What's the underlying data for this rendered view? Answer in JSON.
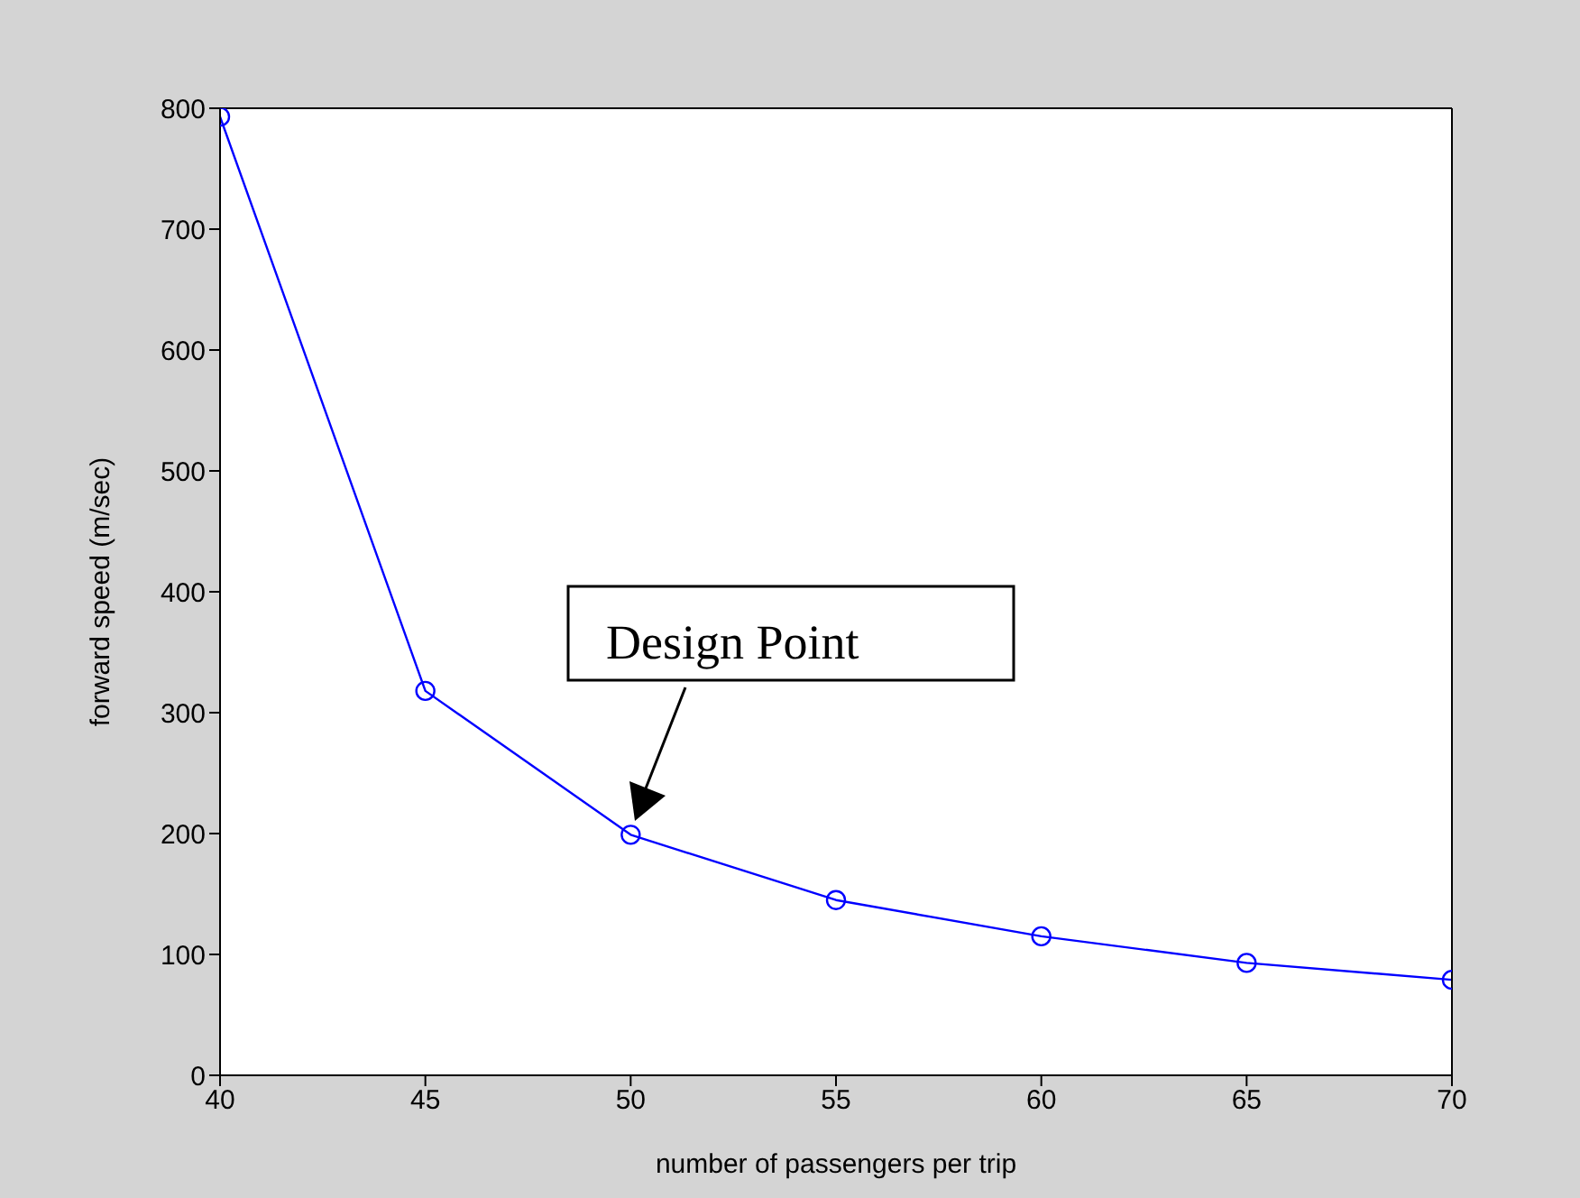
{
  "chart_data": {
    "type": "line",
    "xlabel": "number of passengers per trip",
    "ylabel": "forward speed (m/sec)",
    "x": [
      40,
      45,
      50,
      55,
      60,
      65,
      70
    ],
    "series": [
      {
        "color": "#0000ff",
        "values": [
          793,
          318,
          199,
          145,
          115,
          93,
          79
        ]
      }
    ],
    "xlim": [
      40,
      70
    ],
    "xticks": [
      40,
      45,
      50,
      55,
      60,
      65,
      70
    ],
    "ylim": [
      0,
      800
    ],
    "yticks": [
      0,
      100,
      200,
      300,
      400,
      500,
      600,
      700,
      800
    ],
    "marker": "circle",
    "line_style": "solid",
    "grid": false,
    "annotations": [
      "Design Point"
    ]
  }
}
